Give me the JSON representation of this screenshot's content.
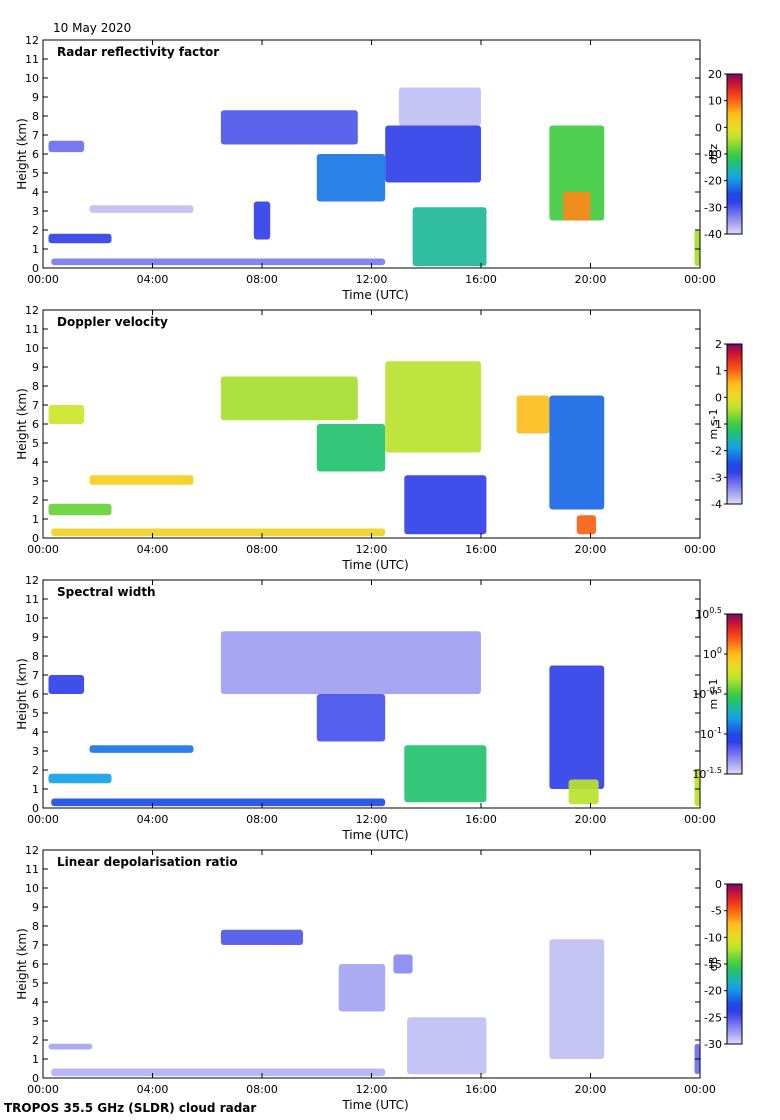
{
  "date_label": "10 May 2020",
  "footer": "TROPOS 35.5 GHz (SLDR) cloud radar",
  "common": {
    "x_ticks": [
      "00:00",
      "04:00",
      "08:00",
      "12:00",
      "16:00",
      "20:00",
      "00:00"
    ],
    "y_ticks": [
      "0",
      "1",
      "2",
      "3",
      "4",
      "5",
      "6",
      "7",
      "8",
      "9",
      "10",
      "11",
      "12"
    ],
    "ylabel": "Height (km)",
    "xlabel": "Time (UTC)"
  },
  "chart_data": [
    {
      "type": "heatmap",
      "title": "Radar reflectivity factor",
      "xlabel": "Time (UTC)",
      "ylabel": "Height (km)",
      "xlim": [
        0,
        24
      ],
      "ylim": [
        0,
        12
      ],
      "colorbar": {
        "label": "dBz",
        "ticks": [
          "20",
          "10",
          "0",
          "-10",
          "-20",
          "-30",
          "-40"
        ],
        "range": [
          -40,
          20
        ],
        "log": false
      },
      "features": [
        {
          "x": [
            0.2,
            1.5
          ],
          "y": [
            6.1,
            6.7
          ],
          "v": -32
        },
        {
          "x": [
            0.2,
            2.5
          ],
          "y": [
            1.3,
            1.8
          ],
          "v": -28
        },
        {
          "x": [
            0.3,
            12.5
          ],
          "y": [
            0.15,
            0.5
          ],
          "v": -33
        },
        {
          "x": [
            6.5,
            11.5
          ],
          "y": [
            6.5,
            8.3
          ],
          "v": -30
        },
        {
          "x": [
            10,
            12.5
          ],
          "y": [
            3.5,
            6.0
          ],
          "v": -22
        },
        {
          "x": [
            12.5,
            16.0
          ],
          "y": [
            4.5,
            7.5
          ],
          "v": -28
        },
        {
          "x": [
            13,
            16
          ],
          "y": [
            7.5,
            9.5
          ],
          "v": -38
        },
        {
          "x": [
            1.7,
            5.5
          ],
          "y": [
            2.9,
            3.3
          ],
          "v": -38
        },
        {
          "x": [
            7.7,
            8.3
          ],
          "y": [
            1.5,
            3.5
          ],
          "v": -28
        },
        {
          "x": [
            13.5,
            16.2
          ],
          "y": [
            0.1,
            3.2
          ],
          "v": -15
        },
        {
          "x": [
            18.5,
            20.5
          ],
          "y": [
            2.5,
            7.5
          ],
          "v": -10
        },
        {
          "x": [
            19.0,
            20.0
          ],
          "y": [
            2.5,
            4.0
          ],
          "v": 8
        },
        {
          "x": [
            23.8,
            24.0
          ],
          "y": [
            0.1,
            2.0
          ],
          "v": -5
        }
      ]
    },
    {
      "type": "heatmap",
      "title": "Doppler velocity",
      "xlabel": "Time (UTC)",
      "ylabel": "Height (km)",
      "xlim": [
        0,
        24
      ],
      "ylim": [
        0,
        12
      ],
      "colorbar": {
        "label": "m s-1",
        "ticks": [
          "2",
          "1",
          "0",
          "-1",
          "-2",
          "-3",
          "-4"
        ],
        "range": [
          -4,
          2
        ],
        "log": false
      },
      "features": [
        {
          "x": [
            0.2,
            1.5
          ],
          "y": [
            6.0,
            7.0
          ],
          "v": -0.3
        },
        {
          "x": [
            0.2,
            2.5
          ],
          "y": [
            1.2,
            1.8
          ],
          "v": -0.8
        },
        {
          "x": [
            0.3,
            12.5
          ],
          "y": [
            0.1,
            0.5
          ],
          "v": 0.2
        },
        {
          "x": [
            6.5,
            11.5
          ],
          "y": [
            6.2,
            8.5
          ],
          "v": -0.5
        },
        {
          "x": [
            10,
            12.5
          ],
          "y": [
            3.5,
            6.0
          ],
          "v": -1.3
        },
        {
          "x": [
            12.5,
            16.0
          ],
          "y": [
            4.5,
            9.3
          ],
          "v": -0.4
        },
        {
          "x": [
            13.2,
            16.2
          ],
          "y": [
            0.2,
            3.3
          ],
          "v": -2.8
        },
        {
          "x": [
            1.7,
            5.5
          ],
          "y": [
            2.8,
            3.3
          ],
          "v": 0.3
        },
        {
          "x": [
            17.3,
            18.5
          ],
          "y": [
            5.5,
            7.5
          ],
          "v": 0.5
        },
        {
          "x": [
            18.5,
            20.5
          ],
          "y": [
            1.5,
            7.5
          ],
          "v": -2.3
        },
        {
          "x": [
            19.5,
            20.2
          ],
          "y": [
            0.2,
            1.2
          ],
          "v": 1.0
        }
      ]
    },
    {
      "type": "heatmap",
      "title": "Spectral width",
      "xlabel": "Time (UTC)",
      "ylabel": "Height (km)",
      "xlim": [
        0,
        24
      ],
      "ylim": [
        0,
        12
      ],
      "colorbar": {
        "label": "m s-1",
        "ticks": [
          "10^0.5",
          "10^0",
          "10^-0.5",
          "10^-1",
          "10^-1.5"
        ],
        "range": [
          -1.5,
          0.5
        ],
        "log": true
      },
      "features": [
        {
          "x": [
            0.2,
            1.5
          ],
          "y": [
            6.0,
            7.0
          ],
          "v": -1.1
        },
        {
          "x": [
            0.2,
            2.5
          ],
          "y": [
            1.3,
            1.8
          ],
          "v": -0.8
        },
        {
          "x": [
            0.3,
            12.5
          ],
          "y": [
            0.1,
            0.5
          ],
          "v": -1.0
        },
        {
          "x": [
            6.5,
            16.0
          ],
          "y": [
            6.0,
            9.3
          ],
          "v": -1.35
        },
        {
          "x": [
            10,
            12.5
          ],
          "y": [
            3.5,
            6.0
          ],
          "v": -1.15
        },
        {
          "x": [
            1.7,
            5.5
          ],
          "y": [
            2.9,
            3.3
          ],
          "v": -0.9
        },
        {
          "x": [
            13.2,
            16.2
          ],
          "y": [
            0.3,
            3.3
          ],
          "v": -0.6
        },
        {
          "x": [
            18.5,
            20.5
          ],
          "y": [
            1.0,
            7.5
          ],
          "v": -1.1
        },
        {
          "x": [
            19.2,
            20.3
          ],
          "y": [
            0.2,
            1.5
          ],
          "v": -0.3
        },
        {
          "x": [
            23.8,
            24.0
          ],
          "y": [
            0.1,
            2.0
          ],
          "v": -0.3
        }
      ]
    },
    {
      "type": "heatmap",
      "title": "Linear depolarisation ratio",
      "xlabel": "Time (UTC)",
      "ylabel": "Height (km)",
      "xlim": [
        0,
        24
      ],
      "ylim": [
        0,
        12
      ],
      "colorbar": {
        "label": "dB",
        "ticks": [
          "0",
          "-5",
          "-10",
          "-15",
          "-20",
          "-25",
          "-30"
        ],
        "range": [
          -30,
          0
        ],
        "log": false
      },
      "features": [
        {
          "x": [
            0.2,
            1.8
          ],
          "y": [
            1.5,
            1.8
          ],
          "v": -28
        },
        {
          "x": [
            0.3,
            12.5
          ],
          "y": [
            0.1,
            0.5
          ],
          "v": -28.5
        },
        {
          "x": [
            6.5,
            9.5
          ],
          "y": [
            7.0,
            7.8
          ],
          "v": -25
        },
        {
          "x": [
            10.8,
            12.5
          ],
          "y": [
            3.5,
            6.0
          ],
          "v": -28
        },
        {
          "x": [
            12.8,
            13.5
          ],
          "y": [
            5.5,
            6.5
          ],
          "v": -27
        },
        {
          "x": [
            13.3,
            16.2
          ],
          "y": [
            0.2,
            3.2
          ],
          "v": -29
        },
        {
          "x": [
            18.5,
            20.5
          ],
          "y": [
            1.0,
            7.3
          ],
          "v": -29
        },
        {
          "x": [
            23.8,
            24.0
          ],
          "y": [
            0.2,
            1.8
          ],
          "v": -26
        }
      ]
    }
  ]
}
